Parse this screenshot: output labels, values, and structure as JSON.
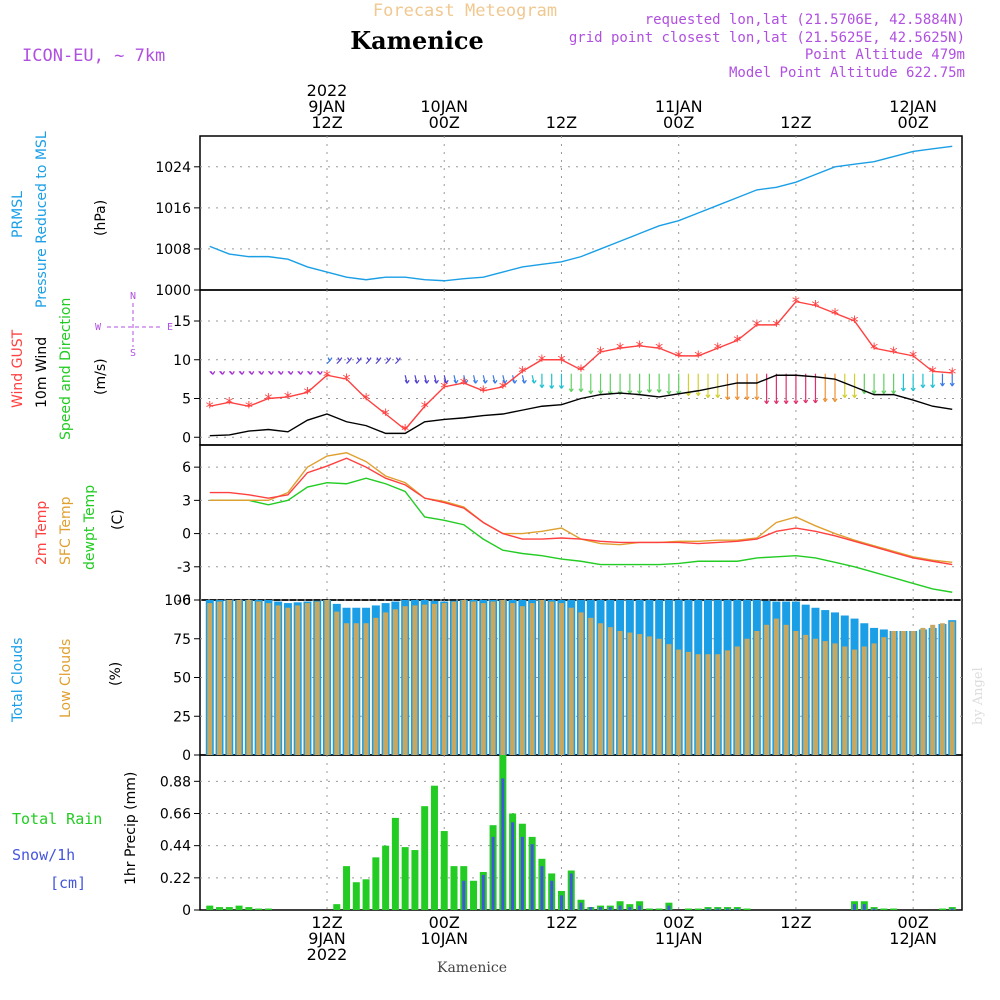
{
  "header": {
    "forecast_title": "Forecast Meteogram",
    "location": "Kamenice",
    "model": "ICON-EU, ~ 7km",
    "requested": "requested lon,lat (21.5706E, 42.5884N)",
    "grid_point": "grid point closest lon,lat (21.5625E, 42.5625N)",
    "point_altitude": "Point Altitude 479m",
    "model_altitude": "Model Point Altitude 622.75m"
  },
  "time_axis": {
    "top": [
      {
        "hours": 12,
        "lines": [
          "2022",
          "9JAN",
          "12Z"
        ]
      },
      {
        "hours": 24,
        "lines": [
          "10JAN",
          "00Z"
        ]
      },
      {
        "hours": 36,
        "lines": [
          "12Z"
        ]
      },
      {
        "hours": 48,
        "lines": [
          "11JAN",
          "00Z"
        ]
      },
      {
        "hours": 60,
        "lines": [
          "12Z"
        ]
      },
      {
        "hours": 72,
        "lines": [
          "12JAN",
          "00Z"
        ]
      }
    ],
    "bottom": [
      {
        "hours": 12,
        "lines": [
          "12Z",
          "9JAN",
          "2022"
        ]
      },
      {
        "hours": 24,
        "lines": [
          "00Z",
          "10JAN"
        ]
      },
      {
        "hours": 36,
        "lines": [
          "12Z"
        ]
      },
      {
        "hours": 48,
        "lines": [
          "00Z",
          "11JAN"
        ]
      },
      {
        "hours": 60,
        "lines": [
          "12Z"
        ]
      },
      {
        "hours": 72,
        "lines": [
          "00Z",
          "12JAN"
        ]
      }
    ],
    "footer_label": "Kamenice"
  },
  "colors": {
    "pressure": "#1a9fe6",
    "gust": "#ff4040",
    "wind": "#000000",
    "temp": "#ff4040",
    "sfc": "#e0a030",
    "dewpt": "#22cc22",
    "total_clouds": "#1a9fe6",
    "low_clouds": "#c8a860",
    "rain": "#22cc22",
    "snow": "#4455dd",
    "purple": "#b050e0"
  },
  "labels": {
    "pressure": {
      "line1": "PRMSL",
      "line2": "Pressure Reduced to MSL",
      "unit": "(hPa)"
    },
    "wind": {
      "gust": "Wind GUST",
      "wind": "10m Wind",
      "dir": "Speed and Direction",
      "unit": "(m/s)"
    },
    "compass": {
      "n": "N",
      "s": "S",
      "w": "W",
      "e": "E"
    },
    "temp": {
      "t2m": "2m Temp",
      "sfc": "SFC Temp",
      "dewpt": "dewpt Temp",
      "unit": "(C)"
    },
    "clouds": {
      "total": "Total Clouds",
      "low": "Low Clouds",
      "unit": "(%)"
    },
    "precip": {
      "rain": "Total  Rain",
      "snow": "Snow/1h",
      "cm": "[cm]",
      "axis": "1hr Precip (mm)"
    },
    "watermark": "by Angel"
  },
  "chart_data": [
    {
      "type": "line",
      "title": "PRMSL Pressure Reduced to MSL",
      "ylabel": "hPa",
      "ylim": [
        1000,
        1030
      ],
      "yticks": [
        1000,
        1008,
        1016,
        1024
      ],
      "x": [
        0,
        2,
        4,
        6,
        8,
        10,
        12,
        14,
        16,
        18,
        20,
        22,
        24,
        26,
        28,
        30,
        32,
        34,
        36,
        38,
        40,
        42,
        44,
        46,
        48,
        50,
        52,
        54,
        56,
        58,
        60,
        62,
        64,
        66,
        68,
        70,
        72,
        74,
        76
      ],
      "series": [
        {
          "name": "PRMSL",
          "values": [
            1008.5,
            1007,
            1006.5,
            1006.5,
            1006,
            1004.5,
            1003.5,
            1002.5,
            1002,
            1002.5,
            1002.5,
            1002,
            1001.8,
            1002.2,
            1002.5,
            1003.5,
            1004.5,
            1005,
            1005.5,
            1006.5,
            1008,
            1009.5,
            1011,
            1012.5,
            1013.5,
            1015,
            1016.5,
            1018,
            1019.5,
            1020,
            1021,
            1022.5,
            1024,
            1024.5,
            1025,
            1026,
            1027,
            1027.5,
            1028
          ]
        }
      ]
    },
    {
      "type": "line",
      "title": "Wind GUST / 10m Wind",
      "ylabel": "m/s",
      "ylim": [
        -1,
        19
      ],
      "yticks": [
        0,
        5,
        10,
        15
      ],
      "x": [
        0,
        2,
        4,
        6,
        8,
        10,
        12,
        14,
        16,
        18,
        20,
        22,
        24,
        26,
        28,
        30,
        32,
        34,
        36,
        38,
        40,
        42,
        44,
        46,
        48,
        50,
        52,
        54,
        56,
        58,
        60,
        62,
        64,
        66,
        68,
        70,
        72,
        74,
        76
      ],
      "series": [
        {
          "name": "Wind GUST",
          "values": [
            4,
            4.5,
            4,
            5,
            5.2,
            5.8,
            8,
            7.5,
            5,
            3,
            1,
            4,
            6.5,
            7,
            6,
            6.5,
            8.5,
            10,
            10,
            8.7,
            11,
            11.5,
            11.8,
            11.5,
            10.5,
            10.5,
            11.5,
            12.5,
            14.5,
            14.5,
            17.5,
            17,
            16,
            15,
            11.5,
            11,
            10.5,
            8.5,
            8.3
          ]
        },
        {
          "name": "10m Wind",
          "values": [
            0.2,
            0.3,
            0.8,
            1,
            0.7,
            2.2,
            3,
            2,
            1.5,
            0.5,
            0.5,
            2,
            2.3,
            2.5,
            2.8,
            3,
            3.5,
            4,
            4.2,
            5,
            5.5,
            5.7,
            5.5,
            5.2,
            5.6,
            6,
            6.5,
            7,
            7,
            8,
            8,
            7.8,
            7.5,
            6.5,
            5.5,
            5.5,
            4.8,
            4,
            3.6
          ]
        }
      ]
    },
    {
      "type": "line",
      "title": "Temperatures",
      "ylabel": "C",
      "ylim": [
        -6,
        8
      ],
      "yticks": [
        -6,
        -3,
        0,
        3,
        6
      ],
      "x": [
        0,
        2,
        4,
        6,
        8,
        10,
        12,
        14,
        16,
        18,
        20,
        22,
        24,
        26,
        28,
        30,
        32,
        34,
        36,
        38,
        40,
        42,
        44,
        46,
        48,
        50,
        52,
        54,
        56,
        58,
        60,
        62,
        64,
        66,
        68,
        70,
        72,
        74,
        76
      ],
      "series": [
        {
          "name": "2m Temp",
          "values": [
            3.7,
            3.7,
            3.5,
            3.2,
            3.5,
            5.5,
            6.1,
            6.8,
            6,
            5,
            4.4,
            3.2,
            2.8,
            2.3,
            1,
            0,
            -0.5,
            -0.5,
            -0.4,
            -0.5,
            -0.7,
            -0.8,
            -0.8,
            -0.8,
            -0.8,
            -0.9,
            -0.8,
            -0.7,
            -0.5,
            0.2,
            0.5,
            0.2,
            -0.2,
            -0.7,
            -1.2,
            -1.7,
            -2.2,
            -2.5,
            -2.8
          ]
        },
        {
          "name": "SFC Temp",
          "values": [
            3,
            3,
            3,
            3,
            3.7,
            6,
            7,
            7.3,
            6.5,
            5.2,
            4.6,
            3.2,
            2.9,
            2.4,
            1,
            0,
            0,
            0.2,
            0.5,
            -0.5,
            -0.9,
            -1,
            -0.8,
            -0.8,
            -0.7,
            -0.7,
            -0.6,
            -0.6,
            -0.4,
            1,
            1.5,
            0.7,
            0,
            -0.6,
            -1.1,
            -1.6,
            -2.1,
            -2.4,
            -2.6
          ]
        },
        {
          "name": "dewpt Temp",
          "values": [
            3,
            3,
            3,
            2.6,
            3,
            4.2,
            4.6,
            4.5,
            5,
            4.5,
            3.8,
            1.5,
            1.2,
            0.8,
            -0.5,
            -1.5,
            -1.8,
            -2,
            -2.3,
            -2.5,
            -2.8,
            -2.8,
            -2.8,
            -2.8,
            -2.7,
            -2.5,
            -2.5,
            -2.5,
            -2.2,
            -2.1,
            -2,
            -2.2,
            -2.6,
            -3,
            -3.5,
            -4,
            -4.5,
            -5,
            -5.3
          ]
        }
      ]
    },
    {
      "type": "bar",
      "title": "Clouds",
      "ylabel": "%",
      "ylim": [
        0,
        100
      ],
      "yticks": [
        0,
        25,
        50,
        75,
        100
      ],
      "x": [
        0,
        2,
        4,
        6,
        8,
        10,
        12,
        14,
        16,
        18,
        20,
        22,
        24,
        26,
        28,
        30,
        32,
        34,
        36,
        38,
        40,
        42,
        44,
        46,
        48,
        50,
        52,
        54,
        56,
        58,
        60,
        62,
        64,
        66,
        68,
        70,
        72,
        74,
        76
      ],
      "series": [
        {
          "name": "Total Clouds",
          "values": [
            100,
            100,
            100,
            100,
            98,
            99,
            100,
            95,
            95,
            98,
            100,
            100,
            99,
            100,
            100,
            100,
            100,
            100,
            100,
            100,
            100,
            100,
            100,
            100,
            100,
            100,
            100,
            100,
            100,
            99,
            99,
            95,
            92,
            88,
            82,
            80,
            80,
            82,
            87
          ]
        },
        {
          "name": "Low Clouds",
          "values": [
            98,
            100,
            100,
            98,
            95,
            98,
            100,
            85,
            85,
            92,
            96,
            97,
            98,
            100,
            98,
            100,
            96,
            100,
            98,
            92,
            85,
            80,
            78,
            75,
            68,
            65,
            65,
            70,
            80,
            88,
            80,
            75,
            72,
            68,
            72,
            80,
            80,
            84,
            86
          ]
        }
      ]
    },
    {
      "type": "bar",
      "title": "1hr Precip",
      "ylabel": "mm",
      "ylim": [
        0,
        1.06
      ],
      "yticks": [
        0,
        0.22,
        0.44,
        0.66,
        0.88
      ],
      "x": [
        0,
        1,
        2,
        3,
        4,
        5,
        6,
        7,
        8,
        9,
        10,
        11,
        12,
        13,
        14,
        15,
        16,
        17,
        18,
        19,
        20,
        21,
        22,
        23,
        24,
        25,
        26,
        27,
        28,
        29,
        30,
        31,
        32,
        33,
        34,
        35,
        36,
        37,
        38,
        39,
        40,
        41,
        42,
        43,
        44,
        45,
        46,
        47,
        48,
        49,
        50,
        51,
        52,
        53,
        54,
        55,
        56,
        57,
        58,
        59,
        60,
        61,
        62,
        63,
        64,
        65,
        66,
        67,
        68,
        69,
        70,
        71,
        72,
        73,
        74,
        75,
        76
      ],
      "series": [
        {
          "name": "Total Rain",
          "values": [
            0.03,
            0.02,
            0.02,
            0.03,
            0.02,
            0.01,
            0.01,
            0,
            0,
            0,
            0,
            0,
            0,
            0.04,
            0.3,
            0.19,
            0.21,
            0.36,
            0.44,
            0.63,
            0.43,
            0.41,
            0.71,
            0.85,
            0.54,
            0.3,
            0.3,
            0.2,
            0.26,
            0.58,
            1.06,
            0.66,
            0.59,
            0.5,
            0.35,
            0.25,
            0.13,
            0.27,
            0.07,
            0.02,
            0.03,
            0.03,
            0.06,
            0.04,
            0.06,
            0.01,
            0.01,
            0.05,
            0,
            0.01,
            0.01,
            0.02,
            0.02,
            0.02,
            0.02,
            0.01,
            0,
            0,
            0,
            0,
            0,
            0,
            0,
            0,
            0,
            0,
            0.06,
            0.06,
            0.02,
            0.01,
            0.01,
            0,
            0,
            0,
            0,
            0.01,
            0.02
          ]
        },
        {
          "name": "Snow/1h",
          "values": [
            0,
            0,
            0,
            0,
            0,
            0,
            0,
            0,
            0,
            0,
            0,
            0,
            0,
            0,
            0,
            0,
            0,
            0,
            0,
            0,
            0,
            0,
            0,
            0,
            0,
            0,
            0.2,
            0,
            0.24,
            0.5,
            0.9,
            0.6,
            0.5,
            0.45,
            0.3,
            0.2,
            0.1,
            0.25,
            0.05,
            0.02,
            0.02,
            0.02,
            0.03,
            0.02,
            0.03,
            0,
            0,
            0.03,
            0,
            0,
            0,
            0.01,
            0.01,
            0.01,
            0.01,
            0,
            0,
            0,
            0,
            0,
            0,
            0,
            0,
            0,
            0,
            0,
            0.04,
            0.04,
            0.01,
            0,
            0,
            0,
            0,
            0,
            0,
            0,
            0.01
          ]
        }
      ]
    }
  ]
}
